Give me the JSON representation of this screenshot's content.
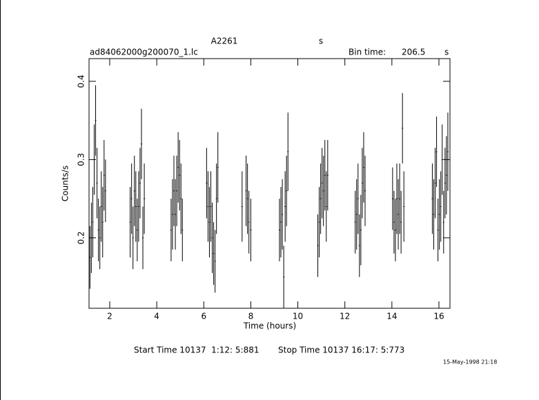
{
  "chart_data": {
    "type": "errorbar",
    "title": "A2261",
    "title_right": "s",
    "subtitle": "ad84062000g200070_1.lc",
    "bin_time_label": "Bin time:",
    "bin_time": 206.5,
    "bin_time_unit": "s",
    "xlabel": "Time (hours)",
    "ylabel": "Counts/s",
    "start_time": "Start Time 10137  1:12: 5:881",
    "stop_time": "Stop Time 10137 16:17: 5:773",
    "timestamp": "15-May-1998 21:18",
    "xlim": [
      1.12,
      16.47
    ],
    "ylim": [
      0.11,
      0.429
    ],
    "xticks": [
      2,
      4,
      6,
      8,
      10,
      12,
      14,
      16
    ],
    "yticks": [
      0.2,
      0.3,
      0.4
    ],
    "color": "#000000",
    "x": [
      1.16,
      1.22,
      1.28,
      1.34,
      1.4,
      1.46,
      1.52,
      1.58,
      1.64,
      1.7,
      1.76,
      1.82,
      2.87,
      2.93,
      2.99,
      3.05,
      3.11,
      3.17,
      3.23,
      3.29,
      3.35,
      3.41,
      3.47,
      4.61,
      4.67,
      4.73,
      4.79,
      4.85,
      4.91,
      4.97,
      5.03,
      5.09,
      6.12,
      6.18,
      6.24,
      6.3,
      6.36,
      6.42,
      6.48,
      6.54,
      6.6,
      7.63,
      7.8,
      7.86,
      7.92,
      8.0,
      9.22,
      9.28,
      9.34,
      9.4,
      9.46,
      9.52,
      9.58,
      10.85,
      10.91,
      10.97,
      11.03,
      11.09,
      11.15,
      11.21,
      11.27,
      12.44,
      12.5,
      12.56,
      12.62,
      12.68,
      12.74,
      12.8,
      12.86,
      14.03,
      14.09,
      14.15,
      14.21,
      14.27,
      14.33,
      14.39,
      14.45,
      14.51,
      15.72,
      15.78,
      15.84,
      15.9,
      15.96,
      16.02,
      16.08,
      16.14,
      16.2,
      16.26,
      16.32,
      16.38
    ],
    "values": [
      0.175,
      0.2,
      0.22,
      0.3,
      0.35,
      0.27,
      0.21,
      0.2,
      0.24,
      0.22,
      0.28,
      0.26,
      0.22,
      0.25,
      0.2,
      0.26,
      0.24,
      0.21,
      0.24,
      0.27,
      0.32,
      0.2,
      0.25,
      0.21,
      0.23,
      0.26,
      0.23,
      0.26,
      0.29,
      0.28,
      0.25,
      0.21,
      0.27,
      0.24,
      0.22,
      0.24,
      0.2,
      0.18,
      0.17,
      0.25,
      0.29,
      0.24,
      0.26,
      0.25,
      0.22,
      0.21,
      0.21,
      0.22,
      0.23,
      0.15,
      0.24,
      0.26,
      0.31,
      0.19,
      0.22,
      0.25,
      0.27,
      0.26,
      0.28,
      0.24,
      0.28,
      0.22,
      0.23,
      0.25,
      0.19,
      0.21,
      0.27,
      0.29,
      0.26,
      0.25,
      0.22,
      0.21,
      0.25,
      0.23,
      0.25,
      0.22,
      0.34,
      0.24,
      0.25,
      0.23,
      0.27,
      0.31,
      0.21,
      0.23,
      0.24,
      0.3,
      0.22,
      0.27,
      0.28,
      0.31
    ],
    "errors": [
      0.04,
      0.045,
      0.045,
      0.045,
      0.045,
      0.045,
      0.04,
      0.04,
      0.045,
      0.045,
      0.045,
      0.04,
      0.045,
      0.045,
      0.04,
      0.045,
      0.045,
      0.04,
      0.045,
      0.045,
      0.045,
      0.04,
      0.045,
      0.04,
      0.045,
      0.045,
      0.045,
      0.045,
      0.045,
      0.045,
      0.045,
      0.04,
      0.045,
      0.045,
      0.045,
      0.045,
      0.045,
      0.04,
      0.04,
      0.045,
      0.045,
      0.045,
      0.045,
      0.045,
      0.04,
      0.04,
      0.04,
      0.045,
      0.045,
      0.04,
      0.045,
      0.045,
      0.05,
      0.04,
      0.045,
      0.045,
      0.045,
      0.045,
      0.045,
      0.045,
      0.045,
      0.04,
      0.045,
      0.045,
      0.04,
      0.045,
      0.045,
      0.045,
      0.045,
      0.04,
      0.04,
      0.04,
      0.045,
      0.045,
      0.045,
      0.04,
      0.045,
      0.045,
      0.045,
      0.045,
      0.045,
      0.045,
      0.04,
      0.045,
      0.045,
      0.045,
      0.04,
      0.045,
      0.05,
      0.05
    ]
  }
}
